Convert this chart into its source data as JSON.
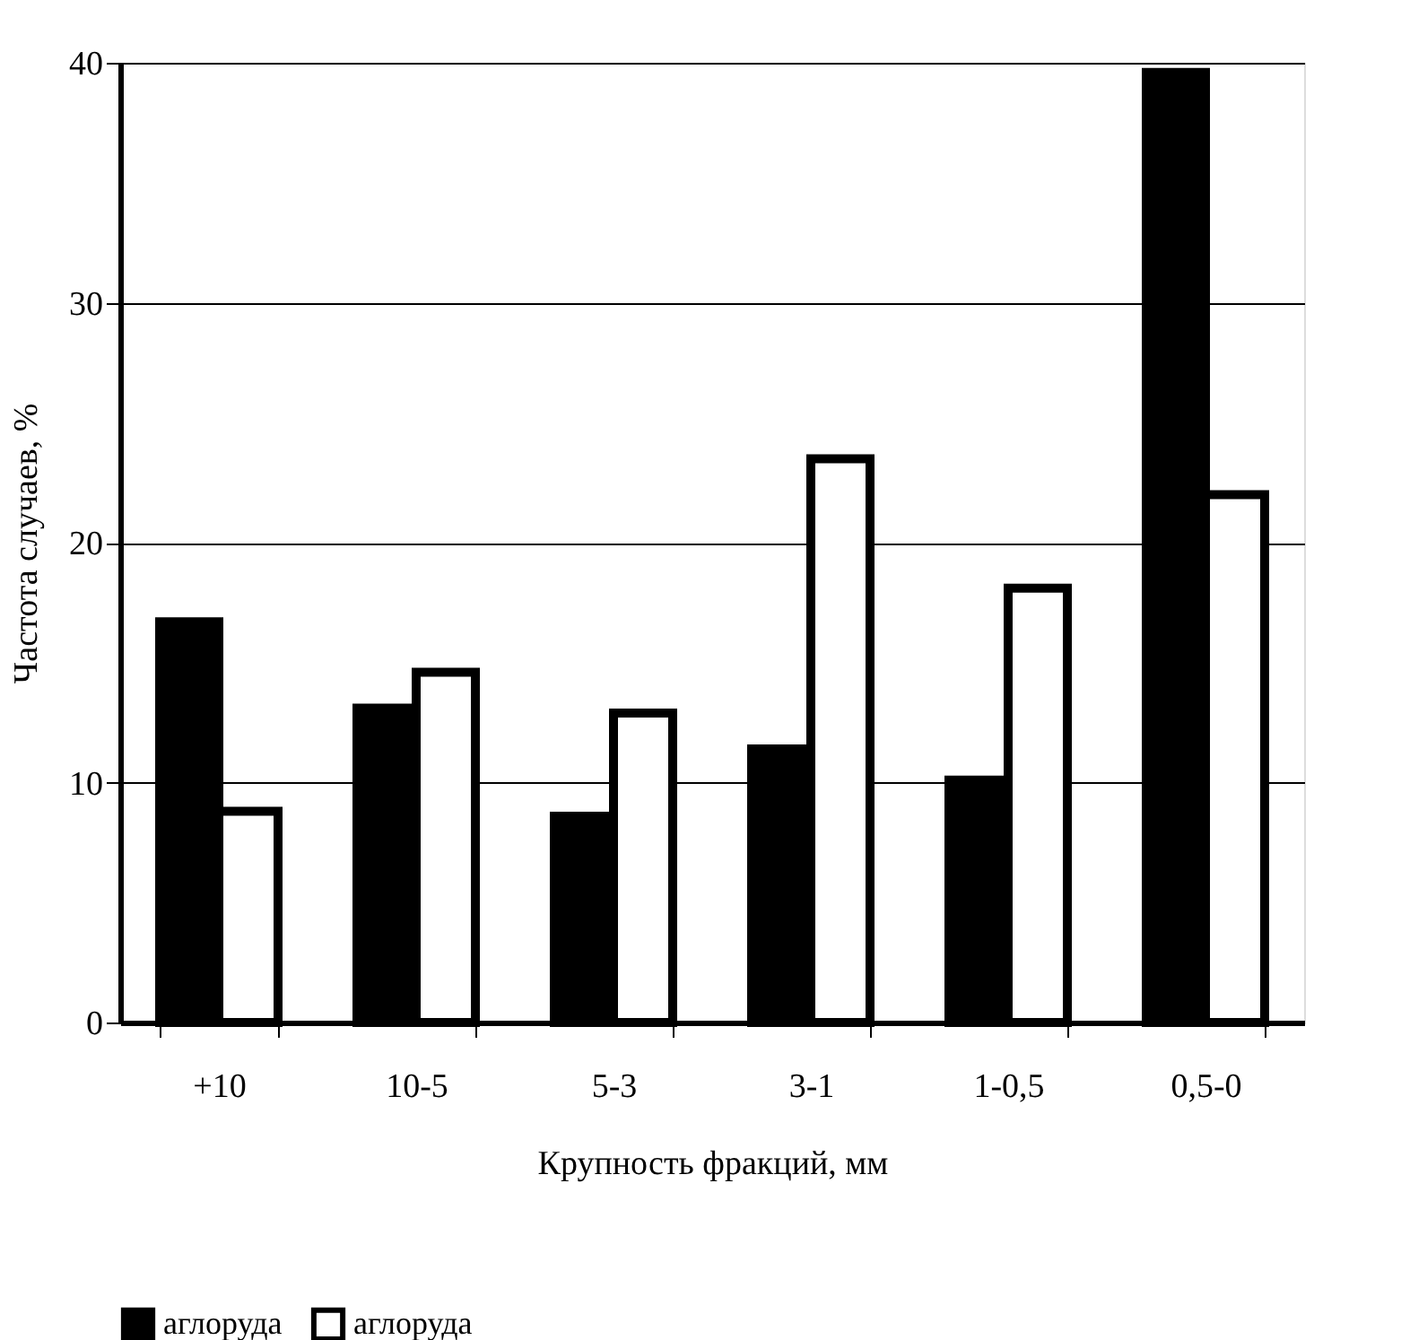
{
  "chart_data": {
    "type": "bar",
    "xlabel": "Крупность фракций, мм",
    "ylabel": "Частота случаев, %",
    "categories": [
      "+10",
      "10-5",
      "5-3",
      "3-1",
      "1-0,5",
      "0,5-0"
    ],
    "series": [
      {
        "name": "аглоруда",
        "color": "#000000",
        "values": [
          16.7,
          13.1,
          8.6,
          11.4,
          10.1,
          39.6
        ]
      },
      {
        "name": "аглоруда",
        "color": "#ffffff",
        "values": [
          8.8,
          14.6,
          12.9,
          23.5,
          18.1,
          22.0
        ]
      }
    ],
    "ylim": [
      0,
      40
    ],
    "yticks": [
      0,
      10,
      20,
      30,
      40
    ],
    "grid": "y",
    "legend": "bottom"
  }
}
